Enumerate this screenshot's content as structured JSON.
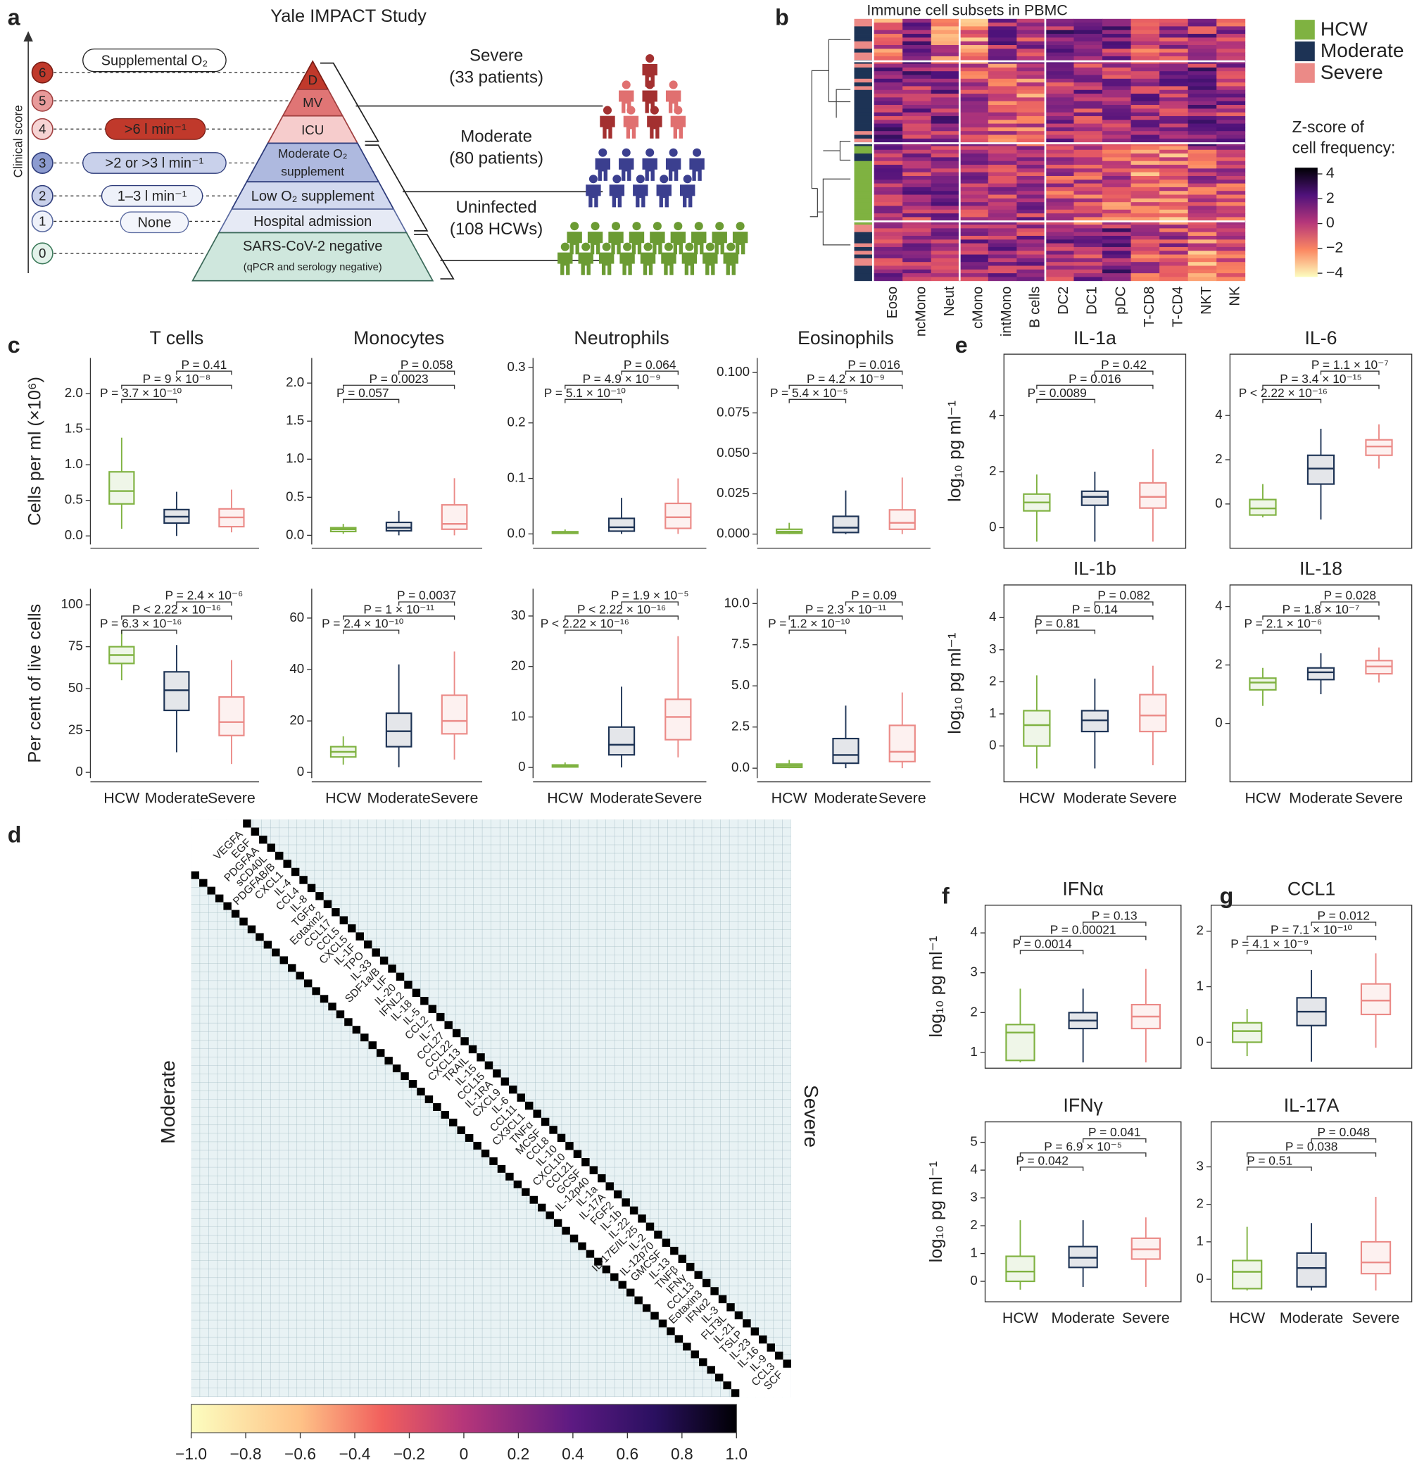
{
  "figure_a": {
    "panel": "a",
    "title": "Yale IMPACT Study",
    "axis_label": "Clinical score",
    "scores": [
      6,
      5,
      4,
      3,
      2,
      1,
      0
    ],
    "oxygen_notes": [
      "Supplemental O₂",
      ">6 l min⁻¹",
      ">2 or >3 l min⁻¹",
      "1–3 l min⁻¹",
      "None"
    ],
    "pyramid": [
      "D",
      "MV",
      "ICU",
      "Moderate O₂",
      "supplement",
      "Low O₂ supplement",
      "Hospital admission",
      "SARS-CoV-2 negative",
      "(qPCR and serology negative)"
    ],
    "cohorts": [
      {
        "name": "Severe",
        "size": "(33 patients)"
      },
      {
        "name": "Moderate",
        "size": "(80 patients)"
      },
      {
        "name": "Uninfected",
        "size": "(108 HCWs)"
      }
    ]
  },
  "figure_b": {
    "panel": "b",
    "title": "Immune cell subsets in PBMC",
    "columns": [
      "Eoso",
      "ncMono",
      "Neut",
      "cMono",
      "intMono",
      "B cells",
      "DC2",
      "DC1",
      "pDC",
      "T-CD8",
      "T-CD4",
      "NKT",
      "NK"
    ],
    "legend": [
      {
        "name": "HCW",
        "color": "#7fb241"
      },
      {
        "name": "Moderate",
        "color": "#1d3355"
      },
      {
        "name": "Severe",
        "color": "#eb8a87"
      }
    ],
    "colorbar_title": [
      "Z-score of",
      "cell frequency:"
    ],
    "colorbar_lim": [
      -4.3,
      4.5
    ],
    "colorbar_ticks": [
      4,
      2,
      0,
      {
        "value": -2,
        "label": "−2"
      },
      {
        "value": -4,
        "label": "−4"
      }
    ]
  },
  "chart_data": [
    {
      "type": "box",
      "panel": "c",
      "title": "T cells",
      "ylabel": "Cells per ml (×10⁶)",
      "ylim": [
        -0.12,
        2.5
      ],
      "yticks": [
        {
          "value": 0,
          "label": "0.0"
        },
        0.5,
        {
          "value": 1,
          "label": "1.0"
        },
        1.5,
        {
          "value": 2,
          "label": "2.0"
        }
      ],
      "boxes": [
        {
          "min": 0.1,
          "q1": 0.45,
          "median": 0.63,
          "q3": 0.9,
          "max": 1.38
        },
        {
          "min": 0.0,
          "q1": 0.18,
          "median": 0.27,
          "q3": 0.37,
          "max": 0.62
        },
        {
          "min": 0.05,
          "q1": 0.13,
          "median": 0.26,
          "q3": 0.38,
          "max": 0.65
        }
      ],
      "pvalues": [
        "P = 0.41",
        "P = 9 × 10⁻⁸",
        "P = 3.7 × 10⁻¹⁰"
      ]
    },
    {
      "type": "box",
      "title": "Monocytes",
      "ylim": [
        -0.12,
        2.33
      ],
      "yticks": [
        {
          "value": 0,
          "label": "0.0"
        },
        0.5,
        {
          "value": 1,
          "label": "1.0"
        },
        1.5,
        {
          "value": 2,
          "label": "2.0"
        }
      ],
      "boxes": [
        {
          "min": 0.02,
          "q1": 0.05,
          "median": 0.08,
          "q3": 0.1,
          "max": 0.15
        },
        {
          "min": 0.0,
          "q1": 0.06,
          "median": 0.1,
          "q3": 0.17,
          "max": 0.32
        },
        {
          "min": 0.0,
          "q1": 0.08,
          "median": 0.15,
          "q3": 0.4,
          "max": 0.75
        }
      ],
      "pvalues": [
        "P = 0.058",
        "P = 0.0023",
        "P = 0.057"
      ]
    },
    {
      "type": "box",
      "title": "Neutrophils",
      "ylim": [
        -0.019,
        0.317
      ],
      "yticks": [
        {
          "value": 0,
          "label": "0.0"
        },
        0.1,
        0.2,
        0.3
      ],
      "boxes": [
        {
          "min": 0.0,
          "q1": 0.001,
          "median": 0.002,
          "q3": 0.004,
          "max": 0.008
        },
        {
          "min": 0.0,
          "q1": 0.005,
          "median": 0.012,
          "q3": 0.028,
          "max": 0.065
        },
        {
          "min": 0.0,
          "q1": 0.01,
          "median": 0.03,
          "q3": 0.055,
          "max": 0.1
        }
      ],
      "pvalues": [
        "P = 0.064",
        "P = 4.9 × 10⁻⁹",
        "P = 5.1 × 10⁻¹⁰"
      ]
    },
    {
      "type": "box",
      "title": "Eosinophils",
      "ylim": [
        -0.0064,
        0.109
      ],
      "yticks": [
        {
          "value": 0,
          "label": "0.000"
        },
        0.025,
        {
          "value": 0.05,
          "label": "0.050"
        },
        0.075,
        {
          "value": 0.1,
          "label": "0.100"
        }
      ],
      "boxes": [
        {
          "min": 0.0,
          "q1": 0.0005,
          "median": 0.0015,
          "q3": 0.003,
          "max": 0.007
        },
        {
          "min": 0.0,
          "q1": 0.001,
          "median": 0.004,
          "q3": 0.011,
          "max": 0.027
        },
        {
          "min": 0.0,
          "q1": 0.003,
          "median": 0.007,
          "q3": 0.015,
          "max": 0.035
        }
      ],
      "pvalues": [
        "P = 0.016",
        "P = 4.2 × 10⁻⁹",
        "P = 5.4 × 10⁻⁵"
      ]
    },
    {
      "type": "box",
      "ylabel": "Per cent of live cells",
      "ylim": [
        -3.4,
        109.6
      ],
      "yticks": [
        0,
        25,
        50,
        75,
        100
      ],
      "categories": [
        "HCW",
        "Moderate",
        "Severe"
      ],
      "boxes": [
        {
          "min": 55,
          "q1": 65,
          "median": 70,
          "q3": 75,
          "max": 85
        },
        {
          "min": 12,
          "q1": 37,
          "median": 49,
          "q3": 60,
          "max": 76
        },
        {
          "min": 5,
          "q1": 22,
          "median": 30,
          "q3": 45,
          "max": 67
        }
      ],
      "pvalues": [
        "P = 2.4 × 10⁻⁶",
        "P < 2.22 × 10⁻¹⁶",
        "P = 6.3 × 10⁻¹⁶"
      ]
    },
    {
      "type": "box",
      "ylim": [
        -2.2,
        71.4
      ],
      "yticks": [
        0,
        20,
        40,
        60
      ],
      "categories": [
        "HCW",
        "Moderate",
        "Severe"
      ],
      "boxes": [
        {
          "min": 3,
          "q1": 6,
          "median": 8,
          "q3": 10,
          "max": 14
        },
        {
          "min": 2,
          "q1": 10,
          "median": 16,
          "q3": 23,
          "max": 42
        },
        {
          "min": 5,
          "q1": 15,
          "median": 20,
          "q3": 30,
          "max": 47
        }
      ],
      "pvalues": [
        "P = 0.0037",
        "P = 1 × 10⁻¹¹",
        "P = 2.4 × 10⁻¹⁰"
      ]
    },
    {
      "type": "box",
      "ylim": [
        -2.1,
        35.4
      ],
      "yticks": [
        0,
        10,
        20,
        30
      ],
      "categories": [
        "HCW",
        "Moderate",
        "Severe"
      ],
      "boxes": [
        {
          "min": 0,
          "q1": 0.1,
          "median": 0.3,
          "q3": 0.5,
          "max": 1
        },
        {
          "min": 0,
          "q1": 2.5,
          "median": 4.5,
          "q3": 8,
          "max": 16
        },
        {
          "min": 2,
          "q1": 5.5,
          "median": 10,
          "q3": 13.5,
          "max": 26
        }
      ],
      "pvalues": [
        "P = 1.9 × 10⁻⁵",
        "P < 2.22 × 10⁻¹⁶",
        "P < 2.22 × 10⁻¹⁶"
      ]
    },
    {
      "type": "box",
      "ylim": [
        -0.6,
        10.9
      ],
      "yticks": [
        {
          "value": 0,
          "label": "0.0"
        },
        2.5,
        {
          "value": 5,
          "label": "5.0"
        },
        7.5,
        {
          "value": 10,
          "label": "10.0"
        }
      ],
      "categories": [
        "HCW",
        "Moderate",
        "Severe"
      ],
      "boxes": [
        {
          "min": 0,
          "q1": 0.05,
          "median": 0.15,
          "q3": 0.25,
          "max": 0.5
        },
        {
          "min": 0,
          "q1": 0.3,
          "median": 0.8,
          "q3": 1.8,
          "max": 3.8
        },
        {
          "min": 0,
          "q1": 0.4,
          "median": 1,
          "q3": 2.6,
          "max": 4.6
        }
      ],
      "pvalues": [
        "P = 0.09",
        "P = 2.3 × 10⁻¹¹",
        "P = 1.2 × 10⁻¹⁰"
      ]
    },
    {
      "type": "box",
      "panel": "e",
      "title": "IL-1a",
      "ylabel": "log₁₀ pg ml⁻¹",
      "ylim": [
        -0.6,
        6.06
      ],
      "yticks": [
        0,
        2,
        4
      ],
      "boxes": [
        {
          "min": -0.5,
          "q1": 0.6,
          "median": 0.9,
          "q3": 1.2,
          "max": 1.9
        },
        {
          "min": -0.5,
          "q1": 0.8,
          "median": 1.1,
          "q3": 1.3,
          "max": 2.0
        },
        {
          "min": -0.5,
          "q1": 0.7,
          "median": 1.1,
          "q3": 1.6,
          "max": 2.8
        }
      ],
      "pvalues": [
        "P = 0.42",
        "P = 0.016",
        "P = 0.0089"
      ]
    },
    {
      "type": "box",
      "title": "IL-6",
      "ylim": [
        -1.83,
        6.6
      ],
      "yticks": [
        0,
        2,
        4
      ],
      "boxes": [
        {
          "min": -0.6,
          "q1": -0.5,
          "median": -0.2,
          "q3": 0.2,
          "max": 0.9
        },
        {
          "min": -0.7,
          "q1": 0.9,
          "median": 1.6,
          "q3": 2.2,
          "max": 3.4
        },
        {
          "min": 1.6,
          "q1": 2.2,
          "median": 2.6,
          "q3": 2.9,
          "max": 3.6
        }
      ],
      "pvalues": [
        "P = 1.1 × 10⁻⁷",
        "P = 3.4 × 10⁻¹⁵",
        "P < 2.22 × 10⁻¹⁶"
      ]
    },
    {
      "type": "box",
      "title": "IL-1b",
      "ylabel": "log₁₀ pg ml⁻¹",
      "ylim": [
        -1.0,
        4.9
      ],
      "yticks": [
        0,
        1,
        2,
        3,
        4
      ],
      "categories": [
        "HCW",
        "Moderate",
        "Severe"
      ],
      "boxes": [
        {
          "min": -0.7,
          "q1": 0,
          "median": 0.65,
          "q3": 1.1,
          "max": 2.2
        },
        {
          "min": -0.7,
          "q1": 0.45,
          "median": 0.8,
          "q3": 1.1,
          "max": 2.1
        },
        {
          "min": -0.6,
          "q1": 0.45,
          "median": 0.95,
          "q3": 1.6,
          "max": 2.5
        }
      ],
      "pvalues": [
        "P = 0.082",
        "P = 0.14",
        "P = 0.81"
      ]
    },
    {
      "type": "box",
      "title": "IL-18",
      "ylim": [
        -1.87,
        4.61
      ],
      "yticks": [
        0,
        2,
        4
      ],
      "categories": [
        "HCW",
        "Moderate",
        "Severe"
      ],
      "boxes": [
        {
          "min": 0.6,
          "q1": 1.15,
          "median": 1.4,
          "q3": 1.55,
          "max": 1.9
        },
        {
          "min": 1.0,
          "q1": 1.5,
          "median": 1.75,
          "q3": 1.9,
          "max": 2.4
        },
        {
          "min": 1.4,
          "q1": 1.7,
          "median": 1.95,
          "q3": 2.15,
          "max": 2.6
        }
      ],
      "pvalues": [
        "P = 0.028",
        "P = 1.8 × 10⁻⁷",
        "P = 2.1 × 10⁻⁶"
      ]
    },
    {
      "type": "box",
      "panel": "f",
      "title": "IFNα",
      "ylabel": "log₁₀ pg ml⁻¹",
      "ylim": [
        0.7,
        4.6
      ],
      "yticks": [
        1,
        2,
        3,
        4
      ],
      "boxes": [
        {
          "min": 0.75,
          "q1": 0.8,
          "median": 1.5,
          "q3": 1.7,
          "max": 2.6
        },
        {
          "min": 0.75,
          "q1": 1.6,
          "median": 1.8,
          "q3": 2.0,
          "max": 2.6
        },
        {
          "min": 0.75,
          "q1": 1.6,
          "median": 1.9,
          "q3": 2.2,
          "max": 3.1
        }
      ],
      "pvalues": [
        "P = 0.13",
        "P = 0.00021",
        "P = 0.0014"
      ]
    },
    {
      "type": "box",
      "title": "IFNγ",
      "ylabel": "log₁₀ pg ml⁻¹",
      "ylim": [
        -0.6,
        5.6
      ],
      "yticks": [
        0,
        1,
        2,
        3,
        4,
        5
      ],
      "categories": [
        "HCW",
        "Moderate",
        "Severe"
      ],
      "boxes": [
        {
          "min": -0.3,
          "q1": 0,
          "median": 0.35,
          "q3": 0.9,
          "max": 2.2
        },
        {
          "min": -0.2,
          "q1": 0.5,
          "median": 0.85,
          "q3": 1.25,
          "max": 2.2
        },
        {
          "min": -0.2,
          "q1": 0.8,
          "median": 1.15,
          "q3": 1.55,
          "max": 2.3
        }
      ],
      "pvalues": [
        "P = 0.041",
        "P = 6.9 × 10⁻⁵",
        "P = 0.042"
      ]
    },
    {
      "type": "box",
      "panel": "g",
      "title": "CCL1",
      "ylim": [
        -0.4,
        2.4
      ],
      "yticks": [
        0,
        1,
        2
      ],
      "boxes": [
        {
          "min": -0.25,
          "q1": 0,
          "median": 0.2,
          "q3": 0.35,
          "max": 0.6
        },
        {
          "min": -0.35,
          "q1": 0.3,
          "median": 0.55,
          "q3": 0.8,
          "max": 1.3
        },
        {
          "min": -0.1,
          "q1": 0.5,
          "median": 0.75,
          "q3": 1.05,
          "max": 1.6
        }
      ],
      "pvalues": [
        "P = 0.012",
        "P = 7.1 × 10⁻¹⁰",
        "P = 4.1 × 10⁻⁹"
      ]
    },
    {
      "type": "box",
      "title": "IL-17A",
      "ylim": [
        -0.5,
        4.1
      ],
      "yticks": [
        0,
        1,
        2,
        3
      ],
      "categories": [
        "HCW",
        "Moderate",
        "Severe"
      ],
      "boxes": [
        {
          "min": -0.3,
          "q1": -0.25,
          "median": 0.2,
          "q3": 0.5,
          "max": 1.4
        },
        {
          "min": -0.3,
          "q1": -0.2,
          "median": 0.3,
          "q3": 0.7,
          "max": 1.5
        },
        {
          "min": -0.3,
          "q1": 0.15,
          "median": 0.45,
          "q3": 1.0,
          "max": 2.2
        }
      ],
      "pvalues": [
        "P = 0.048",
        "P = 0.038",
        "P = 0.51"
      ]
    }
  ],
  "figure_d": {
    "panel": "d",
    "lower_label": "Moderate",
    "upper_label": "Severe",
    "cytokines": [
      "VEGFA",
      "EGF",
      "PDGFAA",
      "sCD40L",
      "PDGFAB/B",
      "CXCL1",
      "IL-4",
      "CCL4",
      "IL-8",
      "TGFα",
      "Eotaxin2",
      "CCL17",
      "CCL5",
      "CXCL5",
      "IL-1F",
      "TPO",
      "IL-33",
      "SDF1a/B",
      "LIF",
      "IL-20",
      "IFNL2",
      "IL-18",
      "IL-5",
      "CCL2",
      "IL-7",
      "CCL27",
      "CCL22",
      "CXCL13",
      "TRAIL",
      "IL-15",
      "CCL15",
      "IL-1RA",
      "CXCL9",
      "IL-6",
      "CCL11",
      "CX3CL1",
      "TNFα",
      "MCSF",
      "CCL8",
      "IL-10",
      "CXCL10",
      "CCL21",
      "GCSF",
      "IL-12p40",
      "IL-1a",
      "IL-17A",
      "FGF2",
      "IL-1b",
      "IL-22",
      "IL-17E/IL-25",
      "IL-2",
      "IL-12p70",
      "GMCSF",
      "IL-13",
      "TNFβ",
      "IFNγ",
      "CCL13",
      "Eotaxin3",
      "IFNα2",
      "IL-3",
      "FLT3L",
      "IL-21",
      "TSLP",
      "IL-23",
      "IL-16",
      "IL-9",
      "CCL3",
      "SCF"
    ],
    "colorbar_lim": [
      -1,
      1
    ],
    "colorbar_ticks": [
      {
        "value": -1,
        "label": "−1.0"
      },
      {
        "value": -0.8,
        "label": "−0.8"
      },
      {
        "value": -0.6,
        "label": "−0.6"
      },
      {
        "value": -0.4,
        "label": "−0.4"
      },
      {
        "value": -0.2,
        "label": "−0.2"
      },
      0,
      0.2,
      0.4,
      0.6,
      0.8,
      {
        "value": 1,
        "label": "1.0"
      }
    ]
  }
}
